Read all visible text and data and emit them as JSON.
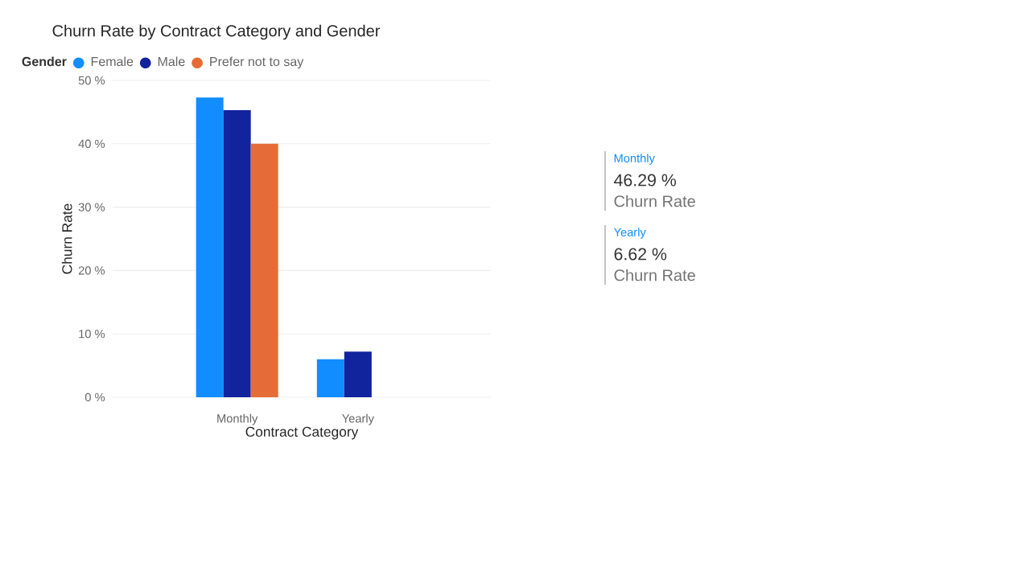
{
  "chart_data": [
    {
      "type": "bar",
      "title": "Churn Rate by Contract Category and Gender",
      "xlabel": "Contract Category",
      "ylabel": "Churn Rate",
      "legend_title": "Gender",
      "categories": [
        "Monthly",
        "Yearly"
      ],
      "series": [
        {
          "name": "Female",
          "color": "#118dff",
          "values": [
            47.3,
            6.0
          ]
        },
        {
          "name": "Male",
          "color": "#12239e",
          "values": [
            45.3,
            7.2
          ]
        },
        {
          "name": "Prefer not to say",
          "color": "#e66c37",
          "values": [
            40.0,
            null
          ]
        }
      ],
      "ylim": [
        0,
        50
      ],
      "yticks": [
        {
          "value": 0,
          "label": "0 %"
        },
        {
          "value": 10,
          "label": "10 %"
        },
        {
          "value": 20,
          "label": "20 %"
        },
        {
          "value": 30,
          "label": "30 %"
        },
        {
          "value": 40,
          "label": "40 %"
        },
        {
          "value": 50,
          "label": "50 %"
        }
      ],
      "grid": "y",
      "legend": "top left"
    },
    {
      "type": "other",
      "annotations": [
        "Monthly",
        "46.29 %",
        "Churn Rate",
        "Yearly",
        "6.62 %",
        "Churn Rate"
      ]
    }
  ]
}
